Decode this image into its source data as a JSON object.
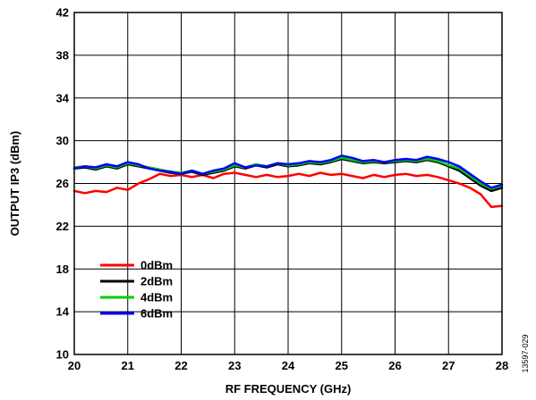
{
  "chart_data": {
    "type": "line",
    "xlabel": "RF FREQUENCY (GHz)",
    "ylabel": "OUTPUT IP3 (dBm)",
    "xlim": [
      20,
      28
    ],
    "ylim": [
      10,
      42
    ],
    "x_ticks": [
      "20",
      "21",
      "22",
      "23",
      "24",
      "25",
      "26",
      "27",
      "28"
    ],
    "y_ticks": [
      "10",
      "14",
      "18",
      "22",
      "26",
      "30",
      "34",
      "38",
      "42"
    ],
    "grid": true,
    "legend_position": "bottom-left",
    "figure_id": "13597-029",
    "series": [
      {
        "name": "0dBm",
        "color": "#ff0000",
        "x": [
          20.0,
          20.2,
          20.4,
          20.6,
          20.8,
          21.0,
          21.2,
          21.4,
          21.6,
          21.8,
          22.0,
          22.2,
          22.4,
          22.6,
          22.8,
          23.0,
          23.2,
          23.4,
          23.6,
          23.8,
          24.0,
          24.2,
          24.4,
          24.6,
          24.8,
          25.0,
          25.2,
          25.4,
          25.6,
          25.8,
          26.0,
          26.2,
          26.4,
          26.6,
          26.8,
          27.0,
          27.2,
          27.4,
          27.6,
          27.8,
          28.0
        ],
        "y": [
          25.3,
          25.1,
          25.3,
          25.2,
          25.6,
          25.4,
          26.0,
          26.4,
          26.9,
          26.7,
          26.8,
          26.6,
          26.8,
          26.5,
          26.9,
          27.0,
          26.8,
          26.6,
          26.8,
          26.6,
          26.7,
          26.9,
          26.7,
          27.0,
          26.8,
          26.9,
          26.7,
          26.5,
          26.8,
          26.6,
          26.8,
          26.9,
          26.7,
          26.8,
          26.6,
          26.3,
          26.0,
          25.6,
          25.0,
          23.8,
          23.9
        ]
      },
      {
        "name": "2dBm",
        "color": "#000000",
        "x": [
          20.0,
          20.2,
          20.4,
          20.6,
          20.8,
          21.0,
          21.2,
          21.4,
          21.6,
          21.8,
          22.0,
          22.2,
          22.4,
          22.6,
          22.8,
          23.0,
          23.2,
          23.4,
          23.6,
          23.8,
          24.0,
          24.2,
          24.4,
          24.6,
          24.8,
          25.0,
          25.2,
          25.4,
          25.6,
          25.8,
          26.0,
          26.2,
          26.4,
          26.6,
          26.8,
          27.0,
          27.2,
          27.4,
          27.6,
          27.8,
          28.0
        ],
        "y": [
          27.4,
          27.5,
          27.3,
          27.6,
          27.4,
          27.8,
          27.6,
          27.4,
          27.2,
          27.0,
          26.9,
          27.1,
          26.8,
          27.0,
          27.2,
          27.6,
          27.4,
          27.7,
          27.5,
          27.8,
          27.6,
          27.7,
          27.9,
          27.8,
          28.0,
          28.3,
          28.1,
          27.9,
          28.0,
          27.9,
          28.0,
          28.1,
          28.0,
          28.2,
          28.0,
          27.6,
          27.2,
          26.5,
          25.8,
          25.3,
          25.6
        ]
      },
      {
        "name": "4dBm",
        "color": "#00cc00",
        "x": [
          20.0,
          20.2,
          20.4,
          20.6,
          20.8,
          21.0,
          21.2,
          21.4,
          21.6,
          21.8,
          22.0,
          22.2,
          22.4,
          22.6,
          22.8,
          23.0,
          23.2,
          23.4,
          23.6,
          23.8,
          24.0,
          24.2,
          24.4,
          24.6,
          24.8,
          25.0,
          25.2,
          25.4,
          25.6,
          25.8,
          26.0,
          26.2,
          26.4,
          26.6,
          26.8,
          27.0,
          27.2,
          27.4,
          27.6,
          27.8,
          28.0
        ],
        "y": [
          27.5,
          27.6,
          27.4,
          27.7,
          27.5,
          27.9,
          27.7,
          27.5,
          27.3,
          27.1,
          27.0,
          27.2,
          26.9,
          27.1,
          27.3,
          27.7,
          27.5,
          27.8,
          27.6,
          27.9,
          27.7,
          27.8,
          28.0,
          27.9,
          28.1,
          28.4,
          28.2,
          28.0,
          28.1,
          28.0,
          28.1,
          28.2,
          28.1,
          28.3,
          28.1,
          27.7,
          27.4,
          26.7,
          26.0,
          25.5,
          25.8
        ]
      },
      {
        "name": "6dBm",
        "color": "#0000ff",
        "x": [
          20.0,
          20.2,
          20.4,
          20.6,
          20.8,
          21.0,
          21.2,
          21.4,
          21.6,
          21.8,
          22.0,
          22.2,
          22.4,
          22.6,
          22.8,
          23.0,
          23.2,
          23.4,
          23.6,
          23.8,
          24.0,
          24.2,
          24.4,
          24.6,
          24.8,
          25.0,
          25.2,
          25.4,
          25.6,
          25.8,
          26.0,
          26.2,
          26.4,
          26.6,
          26.8,
          27.0,
          27.2,
          27.4,
          27.6,
          27.8,
          28.0
        ],
        "y": [
          27.4,
          27.6,
          27.5,
          27.8,
          27.6,
          28.0,
          27.8,
          27.4,
          27.2,
          27.1,
          26.9,
          27.2,
          26.9,
          27.2,
          27.4,
          27.9,
          27.5,
          27.7,
          27.6,
          27.9,
          27.8,
          27.9,
          28.1,
          28.0,
          28.2,
          28.6,
          28.4,
          28.1,
          28.2,
          28.0,
          28.2,
          28.3,
          28.2,
          28.5,
          28.3,
          28.0,
          27.6,
          26.9,
          26.2,
          25.6,
          25.9
        ]
      }
    ]
  }
}
